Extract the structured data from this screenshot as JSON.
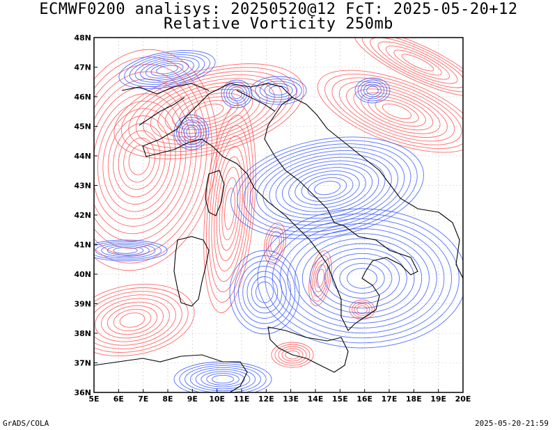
{
  "title_line1": "ECMWF0200 analisys: 20250520@12 FcT: 2025-05-20+12",
  "title_line2": "Relative Vorticity 250mb",
  "lon_ticks": [
    "5E",
    "6E",
    "7E",
    "8E",
    "9E",
    "10E",
    "11E",
    "12E",
    "13E",
    "14E",
    "15E",
    "16E",
    "17E",
    "18E",
    "19E",
    "20E"
  ],
  "lat_ticks": [
    "36N",
    "37N",
    "38N",
    "39N",
    "40N",
    "41N",
    "42N",
    "43N",
    "44N",
    "45N",
    "46N",
    "47N",
    "48N"
  ],
  "footer_left": "GrADS/COLA",
  "footer_right": "2025-05-20-21:59",
  "colors": {
    "positive_vorticity": "#ff4d4d",
    "negative_vorticity": "#3355ff",
    "coastline": "#000000",
    "grid": "#888888"
  },
  "map": {
    "lon_range": [
      5,
      20
    ],
    "lat_range": [
      36,
      48
    ],
    "field": "relative vorticity",
    "level": "250mb"
  }
}
